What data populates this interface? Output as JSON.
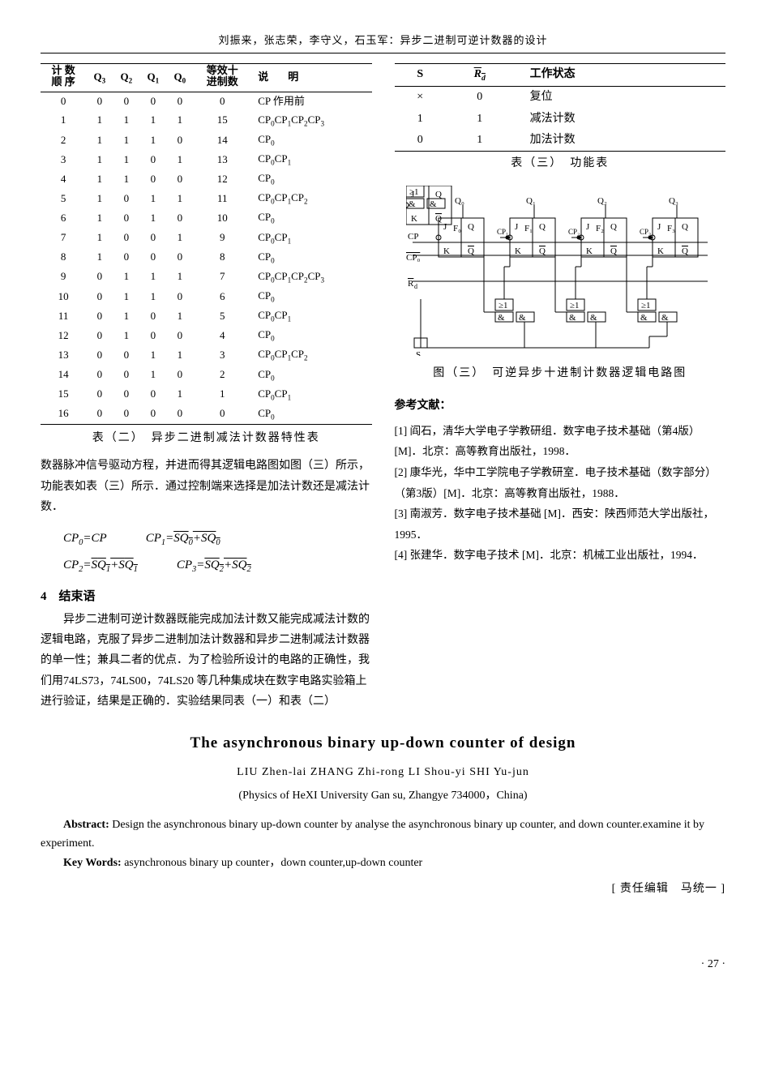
{
  "header": "刘振来，张志荣，李守义，石玉军：异步二进制可逆计数器的设计",
  "table2": {
    "headers": {
      "order": "计 数\n顺 序",
      "q": "Q₃ Q₂ Q₁ Q₀",
      "dec": "等效十\n进制数",
      "expl_l": "说",
      "expl_r": "明"
    },
    "rows": [
      {
        "n": "0",
        "q": [
          "0",
          "0",
          "0",
          "0"
        ],
        "d": "0",
        "e": "CP 作用前"
      },
      {
        "n": "1",
        "q": [
          "1",
          "1",
          "1",
          "1"
        ],
        "d": "15",
        "e": "CP₀CP₁CP₂CP₃"
      },
      {
        "n": "2",
        "q": [
          "1",
          "1",
          "1",
          "0"
        ],
        "d": "14",
        "e": "CP₀"
      },
      {
        "n": "3",
        "q": [
          "1",
          "1",
          "0",
          "1"
        ],
        "d": "13",
        "e": "CP₀CP₁"
      },
      {
        "n": "4",
        "q": [
          "1",
          "1",
          "0",
          "0"
        ],
        "d": "12",
        "e": "CP₀"
      },
      {
        "n": "5",
        "q": [
          "1",
          "0",
          "1",
          "1"
        ],
        "d": "11",
        "e": "CP₀CP₁CP₂"
      },
      {
        "n": "6",
        "q": [
          "1",
          "0",
          "1",
          "0"
        ],
        "d": "10",
        "e": "CP₀"
      },
      {
        "n": "7",
        "q": [
          "1",
          "0",
          "0",
          "1"
        ],
        "d": "9",
        "e": "CP₀CP₁"
      },
      {
        "n": "8",
        "q": [
          "1",
          "0",
          "0",
          "0"
        ],
        "d": "8",
        "e": "CP₀"
      },
      {
        "n": "9",
        "q": [
          "0",
          "1",
          "1",
          "1"
        ],
        "d": "7",
        "e": "CP₀CP₁CP₂CP₃"
      },
      {
        "n": "10",
        "q": [
          "0",
          "1",
          "1",
          "0"
        ],
        "d": "6",
        "e": "CP₀"
      },
      {
        "n": "11",
        "q": [
          "0",
          "1",
          "0",
          "1"
        ],
        "d": "5",
        "e": "CP₀CP₁"
      },
      {
        "n": "12",
        "q": [
          "0",
          "1",
          "0",
          "0"
        ],
        "d": "4",
        "e": "CP₀"
      },
      {
        "n": "13",
        "q": [
          "0",
          "0",
          "1",
          "1"
        ],
        "d": "3",
        "e": "CP₀CP₁CP₂"
      },
      {
        "n": "14",
        "q": [
          "0",
          "0",
          "1",
          "0"
        ],
        "d": "2",
        "e": "CP₀"
      },
      {
        "n": "15",
        "q": [
          "0",
          "0",
          "0",
          "1"
        ],
        "d": "1",
        "e": "CP₀CP₁"
      },
      {
        "n": "16",
        "q": [
          "0",
          "0",
          "0",
          "0"
        ],
        "d": "0",
        "e": "CP₀"
      }
    ],
    "caption": "表（二）　异步二进制减法计数器特性表"
  },
  "left_para1": "数器脉冲信号驱动方程，并进而得其逻辑电路图如图（三）所示，功能表如表（三）所示．通过控制端来选择是加法计数还是减法计数．",
  "sec4_hd": "4　结束语",
  "sec4_body": "异步二进制可逆计数器既能完成加法计数又能完成减法计数的逻辑电路，克服了异步二进制加法计数器和异步二进制减法计数器的单一性；兼具二者的优点．为了检验所设计的电路的正确性，我们用74LS73，74LS00，74LS20 等几种集成块在数字电路实验箱上进行验证，结果是正确的．实验结果同表（一）和表（二）",
  "table3": {
    "headers": {
      "s": "S",
      "rd": "R_d",
      "st": "工作状态"
    },
    "rows": [
      {
        "s": "×",
        "r": "0",
        "st": "复位"
      },
      {
        "s": "1",
        "r": "1",
        "st": "减法计数"
      },
      {
        "s": "0",
        "r": "1",
        "st": "加法计数"
      }
    ],
    "caption": "表（三）　功能表"
  },
  "fig3_caption": "图（三）　可逆异步十进制计数器逻辑电路图",
  "refs_hd": "参考文献：",
  "refs": [
    "[1] 阎石，清华大学电子学教研组．数字电子技术基础（第4版）[M]．北京：高等教育出版社，1998．",
    "[2] 康华光，华中工学院电子学教研室．电子技术基础（数字部分）（第3版）[M]．北京：高等教育出版社，1988．",
    "[3] 南淑芳．数字电子技术基础 [M]．西安：陕西师范大学出版社，1995．",
    "[4] 张建华．数字电子技术 [M]．北京：机械工业出版社，1994．"
  ],
  "en": {
    "title": "The asynchronous binary up-down counter of design",
    "authors": "LIU Zhen-lai  ZHANG Zhi-rong  LI Shou-yi  SHI Yu-jun",
    "affil": "(Physics of HeXI University  Gan su, Zhangye  734000，China)",
    "abstract_label": "Abstract:",
    "abstract": " Design the asynchronous binary up-down counter by analyse the asynchronous binary up counter, and down counter.examine it by experiment.",
    "kw_label": "Key Words:",
    "kw": " asynchronous binary up counter，down counter,up-down counter"
  },
  "editor": "[ 责任编辑　马统一 ]",
  "page": "· 27 ·"
}
